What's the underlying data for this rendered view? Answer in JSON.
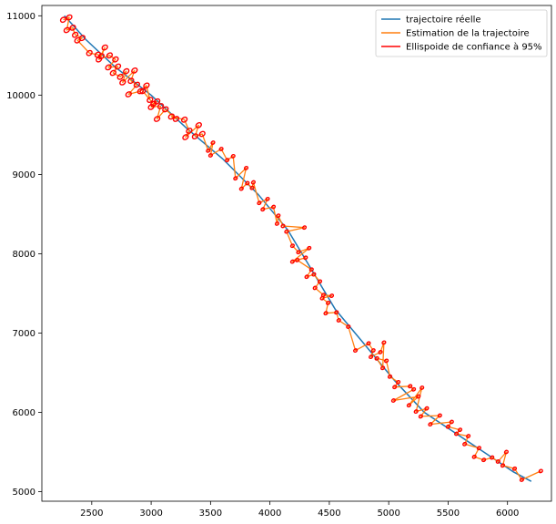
{
  "chart_data": {
    "type": "line",
    "title": "",
    "xlabel": "",
    "ylabel": "",
    "xlim": [
      2080,
      6370
    ],
    "ylim": [
      4880,
      11130
    ],
    "xticks": [
      2500,
      3000,
      3500,
      4000,
      4500,
      5000,
      5500,
      6000
    ],
    "yticks": [
      5000,
      6000,
      7000,
      8000,
      9000,
      10000,
      11000
    ],
    "grid": false,
    "legend_position": "top-right",
    "colors": {
      "true": "#1f77b4",
      "estimate": "#ff7f0e",
      "ellipse": "#ff0000"
    },
    "legend": [
      {
        "label": "trajectoire réelle",
        "color": "#1f77b4"
      },
      {
        "label": "Estimation de la trajectoire",
        "color": "#ff7f0e"
      },
      {
        "label": "Ellispoide de confiance à 95%",
        "color": "#ff0000"
      }
    ],
    "series": [
      {
        "name": "trajectoire réelle",
        "points": [
          [
            2270,
            11000
          ],
          [
            2450,
            10700
          ],
          [
            2700,
            10350
          ],
          [
            3000,
            10000
          ],
          [
            3300,
            9580
          ],
          [
            3600,
            9200
          ],
          [
            3900,
            8750
          ],
          [
            4150,
            8300
          ],
          [
            4350,
            7800
          ],
          [
            4550,
            7300
          ],
          [
            4800,
            6850
          ],
          [
            5050,
            6400
          ],
          [
            5300,
            6000
          ],
          [
            5550,
            5750
          ],
          [
            5800,
            5500
          ],
          [
            6050,
            5250
          ],
          [
            6200,
            5130
          ]
        ]
      },
      {
        "name": "Estimation de la trajectoire",
        "points": [
          [
            2260,
            10950
          ],
          [
            2310,
            10980
          ],
          [
            2290,
            10820
          ],
          [
            2340,
            10850
          ],
          [
            2360,
            10760
          ],
          [
            2420,
            10720
          ],
          [
            2380,
            10690
          ],
          [
            2480,
            10530
          ],
          [
            2550,
            10510
          ],
          [
            2580,
            10490
          ],
          [
            2610,
            10600
          ],
          [
            2560,
            10450
          ],
          [
            2650,
            10500
          ],
          [
            2700,
            10450
          ],
          [
            2640,
            10350
          ],
          [
            2720,
            10360
          ],
          [
            2680,
            10280
          ],
          [
            2740,
            10230
          ],
          [
            2790,
            10300
          ],
          [
            2760,
            10160
          ],
          [
            2860,
            10310
          ],
          [
            2830,
            10180
          ],
          [
            2880,
            10130
          ],
          [
            2810,
            10010
          ],
          [
            2910,
            10050
          ],
          [
            2960,
            10120
          ],
          [
            2990,
            9940
          ],
          [
            2930,
            10050
          ],
          [
            3020,
            9890
          ],
          [
            3050,
            9920
          ],
          [
            3000,
            9850
          ],
          [
            3080,
            9860
          ],
          [
            3050,
            9700
          ],
          [
            3120,
            9820
          ],
          [
            3210,
            9700
          ],
          [
            3170,
            9730
          ],
          [
            3280,
            9690
          ],
          [
            3320,
            9550
          ],
          [
            3290,
            9470
          ],
          [
            3400,
            9620
          ],
          [
            3370,
            9480
          ],
          [
            3430,
            9510
          ],
          [
            3480,
            9300
          ],
          [
            3520,
            9400
          ],
          [
            3500,
            9240
          ],
          [
            3590,
            9320
          ],
          [
            3640,
            9180
          ],
          [
            3690,
            9230
          ],
          [
            3710,
            8950
          ],
          [
            3800,
            9080
          ],
          [
            3760,
            8820
          ],
          [
            3810,
            8890
          ],
          [
            3850,
            8830
          ],
          [
            3860,
            8900
          ],
          [
            3910,
            8640
          ],
          [
            3980,
            8690
          ],
          [
            3940,
            8560
          ],
          [
            4030,
            8590
          ],
          [
            4060,
            8380
          ],
          [
            4070,
            8480
          ],
          [
            4110,
            8350
          ],
          [
            4290,
            8330
          ],
          [
            4140,
            8280
          ],
          [
            4190,
            8100
          ],
          [
            4240,
            8020
          ],
          [
            4330,
            8070
          ],
          [
            4190,
            7900
          ],
          [
            4300,
            7950
          ],
          [
            4230,
            7920
          ],
          [
            4350,
            7800
          ],
          [
            4310,
            7710
          ],
          [
            4370,
            7740
          ],
          [
            4420,
            7650
          ],
          [
            4380,
            7570
          ],
          [
            4450,
            7480
          ],
          [
            4520,
            7470
          ],
          [
            4440,
            7440
          ],
          [
            4490,
            7380
          ],
          [
            4470,
            7250
          ],
          [
            4560,
            7260
          ],
          [
            4580,
            7160
          ],
          [
            4660,
            7080
          ],
          [
            4720,
            6780
          ],
          [
            4830,
            6870
          ],
          [
            4870,
            6780
          ],
          [
            4850,
            6700
          ],
          [
            4930,
            6760
          ],
          [
            4960,
            6880
          ],
          [
            4950,
            6560
          ],
          [
            4900,
            6680
          ],
          [
            4980,
            6650
          ],
          [
            5010,
            6450
          ],
          [
            5080,
            6380
          ],
          [
            5050,
            6320
          ],
          [
            5180,
            6330
          ],
          [
            5210,
            6290
          ],
          [
            5040,
            6150
          ],
          [
            5250,
            6200
          ],
          [
            5170,
            6090
          ],
          [
            5280,
            6310
          ],
          [
            5230,
            6010
          ],
          [
            5320,
            6050
          ],
          [
            5270,
            5950
          ],
          [
            5430,
            5960
          ],
          [
            5350,
            5850
          ],
          [
            5530,
            5880
          ],
          [
            5500,
            5820
          ],
          [
            5600,
            5780
          ],
          [
            5570,
            5730
          ],
          [
            5670,
            5700
          ],
          [
            5640,
            5600
          ],
          [
            5760,
            5550
          ],
          [
            5720,
            5440
          ],
          [
            5800,
            5400
          ],
          [
            5870,
            5430
          ],
          [
            5920,
            5380
          ],
          [
            5990,
            5500
          ],
          [
            5960,
            5330
          ],
          [
            6060,
            5290
          ],
          [
            6120,
            5150
          ],
          [
            6280,
            5260
          ]
        ]
      }
    ]
  }
}
